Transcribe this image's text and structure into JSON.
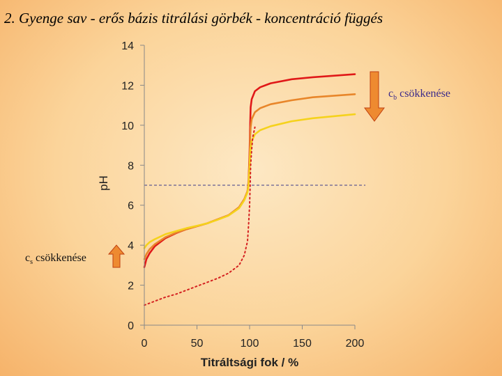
{
  "title": "2. Gyenge sav - erős bázis titrálási görbék - koncentráció függés",
  "annotations": {
    "cb": {
      "var": "c",
      "sub": "b",
      "text": " csökkenése"
    },
    "cs": {
      "var": "c",
      "sub": "s",
      "text": " csökkenése"
    }
  },
  "colors": {
    "curve_high": "#e01818",
    "curve_mid": "#e8862a",
    "curve_low": "#f5d21c",
    "dotted": "#d42020",
    "ref_line": "#3a3a8a",
    "arrow_fill": "#ee8a30",
    "arrow_stroke": "#c04010"
  },
  "chart_data": {
    "type": "line",
    "xlabel": "Titráltsági fok / %",
    "ylabel": "pH",
    "xlim": [
      0,
      200
    ],
    "ylim": [
      0,
      14
    ],
    "xticks": [
      0,
      50,
      100,
      150,
      200
    ],
    "yticks": [
      0,
      2,
      4,
      6,
      8,
      10,
      12,
      14
    ],
    "reference_line": {
      "y": 7,
      "x_range": [
        0,
        210
      ],
      "style": "dashed"
    },
    "series": [
      {
        "style": "solid",
        "color_key": "curve_high",
        "x": [
          0,
          2,
          5,
          10,
          20,
          30,
          40,
          50,
          60,
          70,
          80,
          90,
          95,
          98,
          99,
          100,
          100.5,
          101,
          102,
          105,
          110,
          120,
          140,
          160,
          200
        ],
        "y": [
          2.9,
          3.3,
          3.6,
          3.95,
          4.35,
          4.6,
          4.8,
          4.95,
          5.1,
          5.3,
          5.5,
          5.9,
          6.3,
          6.7,
          7.2,
          8.7,
          10.0,
          10.9,
          11.3,
          11.7,
          11.9,
          12.1,
          12.3,
          12.4,
          12.55
        ]
      },
      {
        "style": "solid",
        "color_key": "curve_mid",
        "x": [
          0,
          2,
          5,
          10,
          20,
          30,
          40,
          50,
          60,
          70,
          80,
          90,
          95,
          98,
          99,
          100,
          100.5,
          101,
          102,
          105,
          110,
          120,
          140,
          160,
          200
        ],
        "y": [
          3.3,
          3.55,
          3.8,
          4.05,
          4.4,
          4.62,
          4.8,
          4.95,
          5.1,
          5.3,
          5.5,
          5.9,
          6.3,
          6.7,
          7.1,
          8.4,
          9.3,
          9.9,
          10.3,
          10.65,
          10.85,
          11.05,
          11.25,
          11.4,
          11.55
        ]
      },
      {
        "style": "solid",
        "color_key": "curve_low",
        "x": [
          0,
          2,
          5,
          10,
          20,
          30,
          40,
          50,
          60,
          70,
          80,
          90,
          95,
          98,
          99,
          100,
          100.5,
          101,
          102,
          105,
          110,
          120,
          140,
          160,
          200
        ],
        "y": [
          3.85,
          4.0,
          4.15,
          4.3,
          4.55,
          4.7,
          4.85,
          4.97,
          5.1,
          5.28,
          5.48,
          5.85,
          6.25,
          6.65,
          7.0,
          7.9,
          8.4,
          8.8,
          9.2,
          9.55,
          9.75,
          9.95,
          10.2,
          10.35,
          10.55
        ]
      },
      {
        "style": "dotted",
        "color_key": "dotted",
        "x": [
          0,
          10,
          20,
          30,
          40,
          50,
          60,
          70,
          80,
          90,
          95,
          98,
          99,
          100,
          100.5,
          101,
          102,
          103,
          105
        ],
        "y": [
          1.0,
          1.2,
          1.4,
          1.55,
          1.75,
          1.95,
          2.15,
          2.35,
          2.6,
          3.0,
          3.5,
          4.2,
          5.0,
          6.0,
          7.0,
          8.0,
          8.8,
          9.4,
          9.9
        ]
      }
    ]
  }
}
